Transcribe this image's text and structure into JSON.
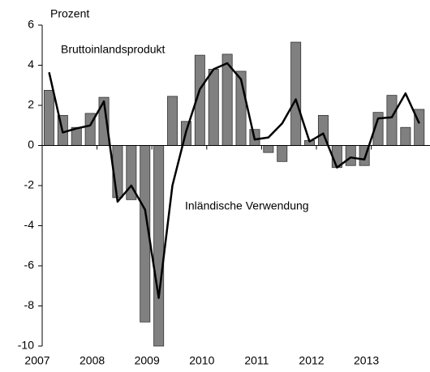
{
  "chart_data": {
    "type": "combo",
    "ylabel": "Prozent",
    "categories": [
      "2007",
      null,
      null,
      null,
      "2008",
      null,
      null,
      null,
      "2009",
      null,
      null,
      null,
      "2010",
      null,
      null,
      null,
      "2011",
      null,
      null,
      null,
      "2012",
      null,
      null,
      null,
      "2013",
      null,
      null,
      null
    ],
    "series": [
      {
        "name": "Bruttoinlandsprodukt",
        "type": "bar",
        "color": "#808080",
        "values": [
          2.75,
          1.5,
          0.9,
          1.6,
          2.4,
          -2.6,
          -2.7,
          -8.8,
          -10,
          2.45,
          1.2,
          4.5,
          3.8,
          4.55,
          3.7,
          0.8,
          -0.35,
          -0.8,
          5.15,
          0.25,
          1.5,
          -1.1,
          -1.0,
          -1.0,
          1.65,
          2.5,
          0.9,
          1.8
        ]
      },
      {
        "name": "Inländische Verwendung",
        "type": "line",
        "color": "#000000",
        "values": [
          3.65,
          0.65,
          0.85,
          1.0,
          2.2,
          -2.8,
          -2.0,
          -3.2,
          -7.6,
          -2.0,
          0.7,
          2.8,
          3.8,
          4.1,
          3.3,
          0.3,
          0.4,
          1.1,
          2.3,
          0.2,
          0.6,
          -1.1,
          -0.6,
          -0.7,
          1.35,
          1.4,
          2.6,
          1.1
        ]
      }
    ],
    "ylim": [
      -10,
      6
    ],
    "yticks": [
      -10,
      -8,
      -6,
      -4,
      -2,
      0,
      2,
      4,
      6
    ]
  }
}
